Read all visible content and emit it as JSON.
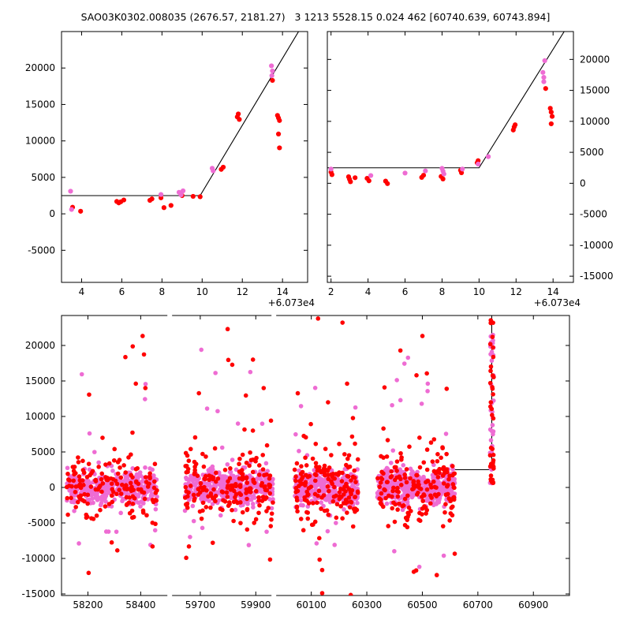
{
  "title": "SAO03K0302.008035 (2676.57, 2181.27)   3 1213 5528.15 0.024 462 [60740.639, 60743.894]",
  "colors": {
    "red": "#ff0000",
    "violet": "#ee6cd3",
    "line": "#000000",
    "frame": "#000000",
    "bg": "#ffffff"
  },
  "chart_data": [
    {
      "type": "scatter",
      "name": "top-left",
      "frame": {
        "l": 78,
        "t": 40,
        "r": 390,
        "b": 358
      },
      "marker": 3.1,
      "x": {
        "range": [
          3.0,
          15.25
        ],
        "ticks": [
          4,
          6,
          8,
          10,
          12,
          14
        ],
        "offset_text": "+6.073e4"
      },
      "y": {
        "range": [
          -9400,
          25000
        ],
        "ticks": [
          -5000,
          0,
          5000,
          10000,
          15000,
          20000
        ],
        "side": "left"
      },
      "line": [
        [
          3.0,
          2500
        ],
        [
          9.9,
          2500
        ],
        [
          14.8,
          25000
        ],
        [
          15.6,
          29100
        ]
      ],
      "series": [
        {
          "color": "red",
          "points": [
            [
              3.55,
              900
            ],
            [
              3.95,
              350
            ],
            [
              5.75,
              1700
            ],
            [
              5.85,
              1500
            ],
            [
              5.95,
              1650
            ],
            [
              6.1,
              1900
            ],
            [
              7.4,
              1850
            ],
            [
              7.5,
              2050
            ],
            [
              7.95,
              2200
            ],
            [
              8.1,
              850
            ],
            [
              8.45,
              1150
            ],
            [
              9.0,
              2500
            ],
            [
              9.55,
              2400
            ],
            [
              9.9,
              2350
            ],
            [
              10.95,
              6100
            ],
            [
              11.05,
              6400
            ],
            [
              11.75,
              13300
            ],
            [
              11.8,
              13700
            ],
            [
              11.85,
              12950
            ],
            [
              13.5,
              18300
            ],
            [
              13.75,
              13500
            ],
            [
              13.8,
              13150
            ],
            [
              13.85,
              12800
            ],
            [
              13.8,
              10950
            ],
            [
              13.85,
              9050
            ]
          ]
        },
        {
          "color": "violet",
          "points": [
            [
              3.45,
              3100
            ],
            [
              3.5,
              600
            ],
            [
              7.95,
              2650
            ],
            [
              8.85,
              2950
            ],
            [
              8.95,
              2600
            ],
            [
              9.05,
              3150
            ],
            [
              10.5,
              6250
            ],
            [
              10.55,
              5900
            ],
            [
              13.45,
              20300
            ],
            [
              13.5,
              19600
            ],
            [
              13.47,
              18950
            ]
          ]
        }
      ]
    },
    {
      "type": "scatter",
      "name": "top-right",
      "frame": {
        "l": 415,
        "t": 40,
        "r": 727,
        "b": 358
      },
      "marker": 3.1,
      "x": {
        "range": [
          1.8,
          15.1
        ],
        "ticks": [
          2,
          4,
          6,
          8,
          10,
          12,
          14
        ],
        "offset_text": "+6.073e4"
      },
      "y": {
        "range": [
          -16000,
          24500
        ],
        "ticks": [
          -15000,
          -10000,
          -5000,
          0,
          5000,
          10000,
          15000,
          20000
        ],
        "side": "right"
      },
      "line": [
        [
          1.8,
          2500
        ],
        [
          10.0,
          2500
        ],
        [
          14.6,
          24500
        ],
        [
          15.2,
          27400
        ]
      ],
      "series": [
        {
          "color": "red",
          "points": [
            [
              2.0,
              1800
            ],
            [
              2.05,
              1400
            ],
            [
              2.95,
              1050
            ],
            [
              3.0,
              650
            ],
            [
              3.05,
              250
            ],
            [
              3.3,
              900
            ],
            [
              3.95,
              800
            ],
            [
              4.05,
              400
            ],
            [
              4.95,
              350
            ],
            [
              5.05,
              -50
            ],
            [
              6.9,
              950
            ],
            [
              7.0,
              1300
            ],
            [
              7.95,
              1100
            ],
            [
              8.05,
              700
            ],
            [
              9.0,
              2100
            ],
            [
              9.05,
              1700
            ],
            [
              9.9,
              3300
            ],
            [
              9.95,
              3650
            ],
            [
              11.85,
              8600
            ],
            [
              11.9,
              9100
            ],
            [
              11.95,
              9450
            ],
            [
              13.6,
              15300
            ],
            [
              13.85,
              12100
            ],
            [
              13.9,
              11500
            ],
            [
              13.95,
              10800
            ],
            [
              13.9,
              9600
            ]
          ]
        },
        {
          "color": "violet",
          "points": [
            [
              2.0,
              2300
            ],
            [
              4.15,
              1250
            ],
            [
              6.0,
              1650
            ],
            [
              7.1,
              2000
            ],
            [
              8.0,
              2400
            ],
            [
              8.05,
              1950
            ],
            [
              8.1,
              1500
            ],
            [
              9.1,
              2300
            ],
            [
              9.95,
              3100
            ],
            [
              10.5,
              4300
            ],
            [
              13.55,
              19800
            ],
            [
              13.45,
              17900
            ],
            [
              13.5,
              17100
            ],
            [
              13.5,
              16400
            ]
          ]
        }
      ]
    },
    {
      "type": "scatter",
      "name": "bottom",
      "frame": {
        "l": 78,
        "t": 400,
        "r": 722,
        "b": 755
      },
      "marker": 2.8,
      "x": {
        "segments": [
          {
            "x": [
              58100,
              58510
            ],
            "f": [
              0.0,
              0.213
            ]
          },
          {
            "x": [
              59590,
              61030
            ],
            "f": [
              0.213,
              1.0
            ]
          }
        ],
        "ticks": [
          58200,
          58400,
          59700,
          59900,
          60100,
          60300,
          60500,
          60700,
          60900
        ]
      },
      "y": {
        "range": [
          -15220,
          24220
        ],
        "ticks": [
          -15000,
          -10000,
          -5000,
          0,
          5000,
          10000,
          15000,
          20000
        ],
        "side": "left"
      },
      "breaks": [
        0.213,
        0.418
      ],
      "line": [
        [
          60615,
          2500
        ],
        [
          60750,
          2500
        ],
        [
          60750,
          24220
        ]
      ],
      "clusters": [
        {
          "x": [
            58120,
            58465
          ],
          "violet": {
            "n": 370,
            "sigma": 1150,
            "out_n": 11,
            "out_up": 20000,
            "out_down": 8500
          },
          "red": {
            "n": 150,
            "sigma": 2300,
            "out_n": 15,
            "out_up": 21500,
            "out_down": 14500
          }
        },
        {
          "x": [
            59645,
            59962
          ],
          "violet": {
            "n": 430,
            "sigma": 1250,
            "out_n": 13,
            "out_up": 20500,
            "out_down": 9000
          },
          "red": {
            "n": 175,
            "sigma": 2500,
            "out_n": 18,
            "out_up": 23900,
            "out_down": 13500
          }
        },
        {
          "x": [
            60040,
            60268
          ],
          "violet": {
            "n": 360,
            "sigma": 1200,
            "out_n": 12,
            "out_up": 19500,
            "out_down": 9500
          },
          "red": {
            "n": 150,
            "sigma": 2400,
            "out_n": 17,
            "out_up": 23900,
            "out_down": 15200
          }
        },
        {
          "x": [
            60338,
            60618
          ],
          "violet": {
            "n": 420,
            "sigma": 1250,
            "out_n": 13,
            "out_up": 21000,
            "out_down": 13500
          },
          "red": {
            "n": 165,
            "sigma": 2500,
            "out_n": 17,
            "out_up": 23500,
            "out_down": 14800
          }
        }
      ],
      "flare": {
        "x": [
          60744,
          60757
        ],
        "y": [
          400,
          23900
        ],
        "violet_n": 30,
        "red_n": 34,
        "violet_top": {
          "n": 9,
          "y": [
            18600,
            21700
          ]
        },
        "red_bottom": {
          "n": 5,
          "y": [
            300,
            1500
          ]
        }
      }
    }
  ]
}
